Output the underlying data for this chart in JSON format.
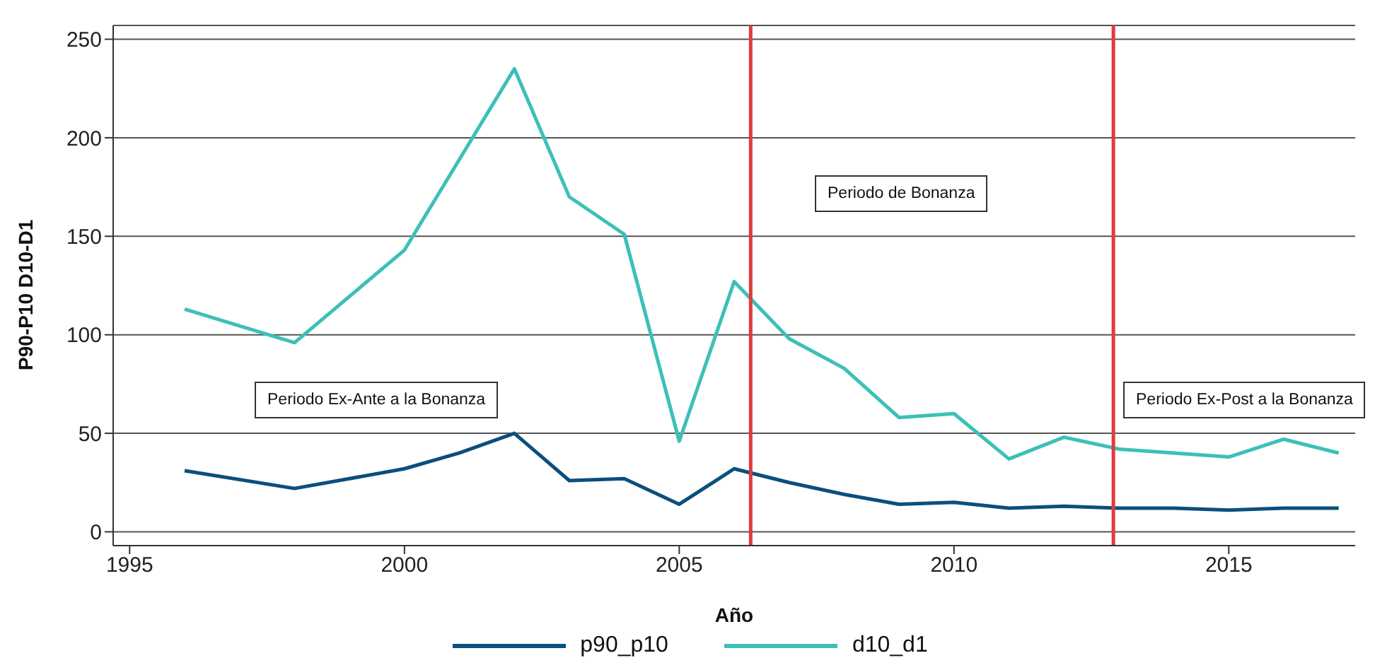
{
  "chart_data": {
    "type": "line",
    "xlabel": "Año",
    "ylabel": "P90-P10 D10-D1",
    "x": [
      1996,
      1998,
      2000,
      2001,
      2002,
      2003,
      2004,
      2005,
      2006,
      2007,
      2008,
      2009,
      2010,
      2011,
      2012,
      2013,
      2014,
      2015,
      2016,
      2017
    ],
    "series": [
      {
        "name": "p90_p10",
        "color": "#0b4f7c",
        "values": [
          31,
          22,
          32,
          40,
          50,
          26,
          27,
          14,
          32,
          25,
          19,
          14,
          15,
          12,
          13,
          12,
          12,
          11,
          12,
          12
        ]
      },
      {
        "name": "d10_d1",
        "color": "#3cc0b8",
        "values": [
          113,
          96,
          143,
          189,
          235,
          170,
          151,
          46,
          127,
          98,
          83,
          58,
          60,
          37,
          48,
          42,
          40,
          38,
          47,
          40
        ]
      }
    ],
    "xlim": [
      1994.7,
      2017.3
    ],
    "xticks": [
      1995,
      2000,
      2005,
      2010,
      2015
    ],
    "ylim": [
      -7,
      257
    ],
    "yticks": [
      0,
      50,
      100,
      150,
      200,
      250
    ],
    "grid": "y",
    "legend": "bottom",
    "marker": "none",
    "line_style": "solid",
    "ref_lines": [
      {
        "axis": "x",
        "value": 2006.3,
        "color": "#e03a3e"
      },
      {
        "axis": "x",
        "value": 2012.9,
        "color": "#e03a3e"
      }
    ],
    "annotations": [
      "Periodo Ex-Ante a la Bonanza",
      "Periodo de Bonanza",
      "Periodo Ex-Post a la Bonanza"
    ]
  }
}
